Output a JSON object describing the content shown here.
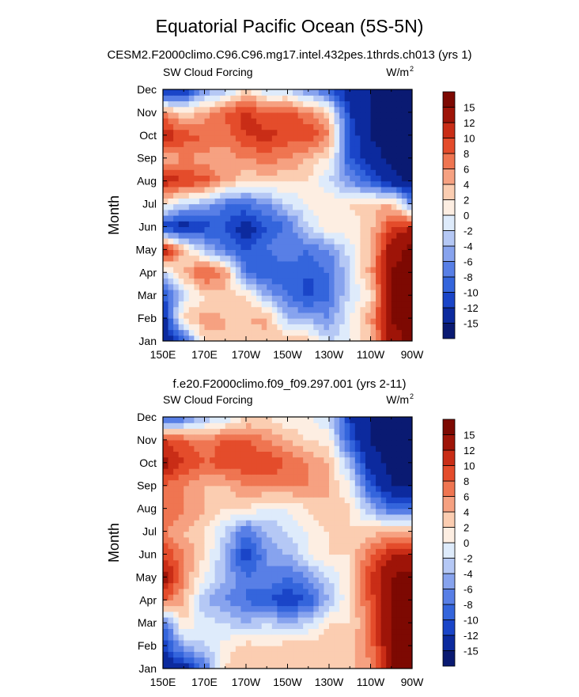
{
  "title": "Equatorial Pacific Ocean (5S-5N)",
  "colors": [
    "#0a1a72",
    "#0c2a9e",
    "#1a45c8",
    "#3465dc",
    "#587fe6",
    "#87a3ee",
    "#b5c8f5",
    "#deebfb",
    "#fdeee2",
    "#fbcdb1",
    "#f6a181",
    "#ef7551",
    "#e44c2b",
    "#c92d16",
    "#9e1408",
    "#7d0902"
  ],
  "levels": [
    "-15",
    "-12",
    "-10",
    "-8",
    "-6",
    "-4",
    "-2",
    "0",
    "2",
    "4",
    "6",
    "8",
    "10",
    "12",
    "15"
  ],
  "chart_data": [
    {
      "type": "heatmap",
      "title": "CESM2.F2000climo.C96.C96.mg17.intel.432pes.1thrds.ch013 (yrs 1)",
      "left_label": "SW Cloud Forcing",
      "right_label": "W/m",
      "right_label_sup": "2",
      "ylabel": "Month",
      "xlabel": "",
      "x_ticks": [
        "150E",
        "170E",
        "170W",
        "150W",
        "130W",
        "110W",
        "90W"
      ],
      "y_ticks": [
        "Jan",
        "Feb",
        "Mar",
        "Apr",
        "May",
        "Jun",
        "Jul",
        "Aug",
        "Sep",
        "Oct",
        "Nov",
        "Dec"
      ],
      "x_range": [
        "150E",
        "90W"
      ],
      "columns": [
        "150E",
        "160E",
        "170E",
        "180",
        "170W",
        "160W",
        "150W",
        "140W",
        "130W",
        "120W",
        "110W",
        "100W",
        "90W"
      ],
      "rows": [
        "Jan",
        "Feb",
        "Mar",
        "Apr",
        "May",
        "Jun",
        "Jul",
        "Aug",
        "Sep",
        "Oct",
        "Nov",
        "Dec"
      ],
      "values": [
        [
          -15,
          -10,
          3,
          4,
          2,
          3,
          5,
          3,
          -2,
          0,
          3,
          14,
          16
        ],
        [
          -14,
          3,
          5,
          4,
          4,
          5,
          -4,
          -4,
          -6,
          0,
          5,
          15,
          16
        ],
        [
          -10,
          -2,
          2,
          3,
          2,
          -4,
          -8,
          -11,
          -8,
          -2,
          2,
          15,
          16
        ],
        [
          -2,
          4,
          9,
          6,
          -8,
          -10,
          -9,
          -10,
          -8,
          -2,
          5,
          15,
          16
        ],
        [
          14,
          3,
          -3,
          -8,
          -10,
          -8,
          -6,
          -8,
          -6,
          -1,
          4,
          14,
          16
        ],
        [
          -12,
          -14,
          -11,
          -10,
          -14,
          -10,
          -8,
          -2,
          2,
          1,
          3,
          10,
          12
        ],
        [
          2,
          -2,
          -4,
          -8,
          -8,
          -6,
          -2,
          0,
          2,
          2,
          3,
          4,
          -6
        ],
        [
          12,
          10,
          9,
          5,
          2,
          3,
          2,
          2,
          -2,
          -6,
          -10,
          -14,
          -16
        ],
        [
          4,
          6,
          5,
          5,
          6,
          7,
          6,
          4,
          1,
          -10,
          -14,
          -16,
          -16
        ],
        [
          13,
          9,
          8,
          7,
          10,
          11,
          9,
          10,
          6,
          -10,
          -15,
          -16,
          -16
        ],
        [
          6,
          2,
          5,
          8,
          11,
          8,
          9,
          6,
          2,
          -12,
          -15,
          -16,
          -16
        ],
        [
          -14,
          -13,
          -6,
          -4,
          2,
          -2,
          -2,
          -6,
          -10,
          -14,
          -15,
          -16,
          -16
        ]
      ],
      "color_range": [
        -15,
        15
      ]
    },
    {
      "type": "heatmap",
      "title": "f.e20.F2000climo.f09_f09.297.001 (yrs 2-11)",
      "left_label": "SW Cloud Forcing",
      "right_label": "W/m",
      "right_label_sup": "2",
      "ylabel": "Month",
      "xlabel": "",
      "x_ticks": [
        "150E",
        "170E",
        "170W",
        "150W",
        "130W",
        "110W",
        "90W"
      ],
      "y_ticks": [
        "Jan",
        "Feb",
        "Mar",
        "Apr",
        "May",
        "Jun",
        "Jul",
        "Aug",
        "Sep",
        "Oct",
        "Nov",
        "Dec"
      ],
      "x_range": [
        "150E",
        "90W"
      ],
      "columns": [
        "150E",
        "160E",
        "170E",
        "180",
        "170W",
        "160W",
        "150W",
        "140W",
        "130W",
        "120W",
        "110W",
        "100W",
        "90W"
      ],
      "rows": [
        "Jan",
        "Feb",
        "Mar",
        "Apr",
        "May",
        "Jun",
        "Jul",
        "Aug",
        "Sep",
        "Oct",
        "Nov",
        "Dec"
      ],
      "values": [
        [
          -15,
          -14,
          -8,
          2,
          4,
          2,
          3,
          2,
          2,
          3,
          6,
          15,
          16
        ],
        [
          -12,
          -4,
          -2,
          1,
          3,
          2,
          3,
          3,
          4,
          3,
          7,
          15,
          16
        ],
        [
          -8,
          2,
          -1,
          -2,
          -4,
          -2,
          -4,
          -2,
          2,
          2,
          7,
          15,
          16
        ],
        [
          8,
          4,
          -4,
          -6,
          -8,
          -10,
          -12,
          -10,
          -4,
          2,
          9,
          15,
          16
        ],
        [
          14,
          6,
          0,
          -4,
          -8,
          -6,
          -8,
          -6,
          -2,
          2,
          10,
          15,
          16
        ],
        [
          10,
          6,
          2,
          -4,
          -12,
          -6,
          -4,
          0,
          2,
          2,
          8,
          12,
          13
        ],
        [
          6,
          4,
          2,
          -2,
          -8,
          -4,
          -2,
          0,
          2,
          2,
          3,
          4,
          4
        ],
        [
          8,
          6,
          4,
          2,
          2,
          0,
          0,
          2,
          4,
          2,
          -4,
          -8,
          -8
        ],
        [
          8,
          6,
          4,
          4,
          6,
          6,
          6,
          6,
          4,
          0,
          -10,
          -15,
          -16
        ],
        [
          13,
          10,
          8,
          9,
          10,
          10,
          8,
          6,
          4,
          -4,
          -14,
          -16,
          -16
        ],
        [
          10,
          8,
          6,
          9,
          8,
          6,
          4,
          2,
          1,
          -10,
          -15,
          -16,
          -16
        ],
        [
          -10,
          -8,
          -4,
          -2,
          2,
          2,
          0,
          0,
          -2,
          -12,
          -15,
          -16,
          -16
        ]
      ],
      "color_range": [
        -15,
        15
      ]
    }
  ]
}
